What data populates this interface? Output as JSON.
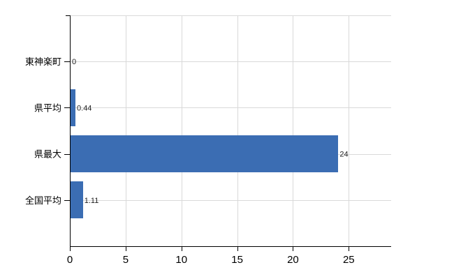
{
  "chart_data": {
    "type": "bar",
    "orientation": "horizontal",
    "title": "",
    "categories": [
      "東神楽町",
      "県平均",
      "県最大",
      "全国平均"
    ],
    "values": [
      0,
      0.44,
      24,
      1.11
    ],
    "value_labels": [
      "0",
      "0.44",
      "24",
      "1.11"
    ],
    "x_ticks": [
      0,
      5,
      10,
      15,
      20,
      25
    ],
    "x_tick_labels": [
      "0",
      "5",
      "10",
      "15",
      "20",
      "25"
    ],
    "xlim": [
      0,
      28.8
    ],
    "xlabel": "",
    "ylabel": "",
    "grid": "on",
    "legend": "none",
    "colors": {
      "bar": "#3b6db3",
      "grid": "#d9d9d9",
      "axis": "#000000",
      "tick_label": "#000000",
      "category_label": "#000000",
      "value_label": "#222222",
      "background": "#ffffff"
    }
  }
}
